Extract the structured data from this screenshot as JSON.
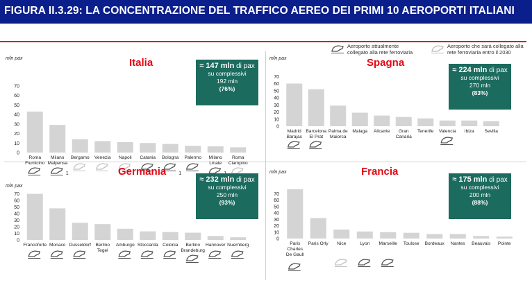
{
  "header": {
    "title": "FIGURA II.3.29: LA CONCENTRAZIONE DEL TRAFFICO AEREO DEI PRIMI 10 AEROPORTI ITALIANI"
  },
  "legend": {
    "connected": [
      "Aeroporto attualmente",
      "collegato alla rete ferroviaria"
    ],
    "future": [
      "Aeroporto che sarà collegato alla",
      "rete ferroviaria entro il 2030"
    ]
  },
  "colors": {
    "bar": "#d4d4d4",
    "accent": "#e30613",
    "callout": "#1b6b5e",
    "header": "#0a1e8c",
    "icon_connected": "#555555",
    "icon_future": "#c2c2c2"
  },
  "chart_data": [
    {
      "type": "bar",
      "title": "Italia",
      "ylabel": "mln pax",
      "ylim": [
        0,
        80
      ],
      "yticks": [
        0,
        10,
        20,
        30,
        40,
        50,
        60,
        70
      ],
      "categories": [
        [
          "Roma",
          "Fiumicino"
        ],
        [
          "Milano",
          "Malpensa"
        ],
        [
          "Bergamo"
        ],
        [
          "Venezia"
        ],
        [
          "Napoli"
        ],
        [
          "Catania"
        ],
        [
          "Bologna"
        ],
        [
          "Palermo"
        ],
        [
          "Milano",
          "Linate"
        ],
        [
          "Roma",
          "Ciampino"
        ]
      ],
      "values": [
        43,
        29,
        14,
        12,
        11,
        10,
        9,
        7,
        6.5,
        5.5
      ],
      "rail": [
        "connected",
        "connected",
        "future",
        "future",
        "future",
        "connected",
        "connected",
        "connected",
        "connected",
        "future"
      ],
      "callout": {
        "total": "≈ 147 mln",
        "unit": "di pax",
        "line2": "su complessivi",
        "line3": "192 mln",
        "share": "(76%)"
      },
      "notes": [
        {
          "bar": 1,
          "text": "1"
        },
        {
          "bar": 6,
          "text": "1"
        },
        {
          "bar": 8,
          "text": "1"
        }
      ]
    },
    {
      "type": "bar",
      "title": "Spagna",
      "ylabel": "mln pax",
      "ylim": [
        0,
        80
      ],
      "yticks": [
        0,
        10,
        20,
        30,
        40,
        50,
        60,
        70
      ],
      "categories": [
        [
          "Madrid",
          "Barajas"
        ],
        [
          "Barcelona",
          "El Prat"
        ],
        [
          "Palma de",
          "Maiorca"
        ],
        [
          "Malaga"
        ],
        [
          "Alicante"
        ],
        [
          "Gran",
          "Canaria"
        ],
        [
          "Tenerife"
        ],
        [
          "Valencia"
        ],
        [
          "Ibiza"
        ],
        [
          "Sevilla"
        ]
      ],
      "values": [
        60,
        52,
        29,
        19,
        15,
        13,
        11,
        8,
        8,
        7
      ],
      "rail": [
        "connected",
        "connected",
        "none",
        "none",
        "none",
        "none",
        "none",
        "connected",
        "none",
        "none"
      ],
      "callout": {
        "total": "≈ 224 mln",
        "unit": "di pax",
        "line2": "su complessivi",
        "line3": "270 mln",
        "share": "(83%)"
      }
    },
    {
      "type": "bar",
      "title": "Germania",
      "ylabel": "mln pax",
      "ylim": [
        0,
        80
      ],
      "yticks": [
        0,
        10,
        20,
        30,
        40,
        50,
        60,
        70
      ],
      "categories": [
        [
          "Francoforte"
        ],
        [
          "Monaco"
        ],
        [
          "Dusseldorf"
        ],
        [
          "Berlino",
          "Tegel"
        ],
        [
          "Amburgo"
        ],
        [
          "Stoccarda"
        ],
        [
          "Colonia"
        ],
        [
          "Berlino",
          "Brandeburg"
        ],
        [
          "Hannover"
        ],
        [
          "Nuernberg"
        ]
      ],
      "values": [
        70,
        48,
        26,
        24,
        17,
        13,
        12,
        11,
        6,
        4
      ],
      "rail": [
        "connected",
        "connected",
        "connected",
        "none",
        "connected",
        "connected",
        "connected",
        "connected",
        "connected",
        "connected"
      ],
      "callout": {
        "total": "≈ 232 mln",
        "unit": "di pax",
        "line2": "su complessivi",
        "line3": "250 mln",
        "share": "(93%)"
      }
    },
    {
      "type": "bar",
      "title": "Francia",
      "ylabel": "mln pax",
      "ylim": [
        0,
        80
      ],
      "yticks": [
        0,
        10,
        20,
        30,
        40,
        50,
        60,
        70
      ],
      "categories": [
        [
          "Paris",
          "Charles",
          "De Gaull"
        ],
        [
          "Paris Orly"
        ],
        [
          "Nice"
        ],
        [
          "Lyon"
        ],
        [
          "Marseille"
        ],
        [
          "Toulose"
        ],
        [
          "Bordeaux"
        ],
        [
          "Nantes"
        ],
        [
          "Beauvais"
        ],
        [
          "Pointe"
        ]
      ],
      "values": [
        77,
        32,
        14,
        11,
        10,
        9,
        7,
        7,
        4,
        3
      ],
      "rail": [
        "connected",
        "none",
        "future",
        "connected",
        "connected",
        "none",
        "none",
        "none",
        "none",
        "none"
      ],
      "callout": {
        "total": "≈ 175 mln",
        "unit": "di pax",
        "line2": "su complessivi",
        "line3": "200 mln",
        "share": "(88%)"
      }
    }
  ]
}
